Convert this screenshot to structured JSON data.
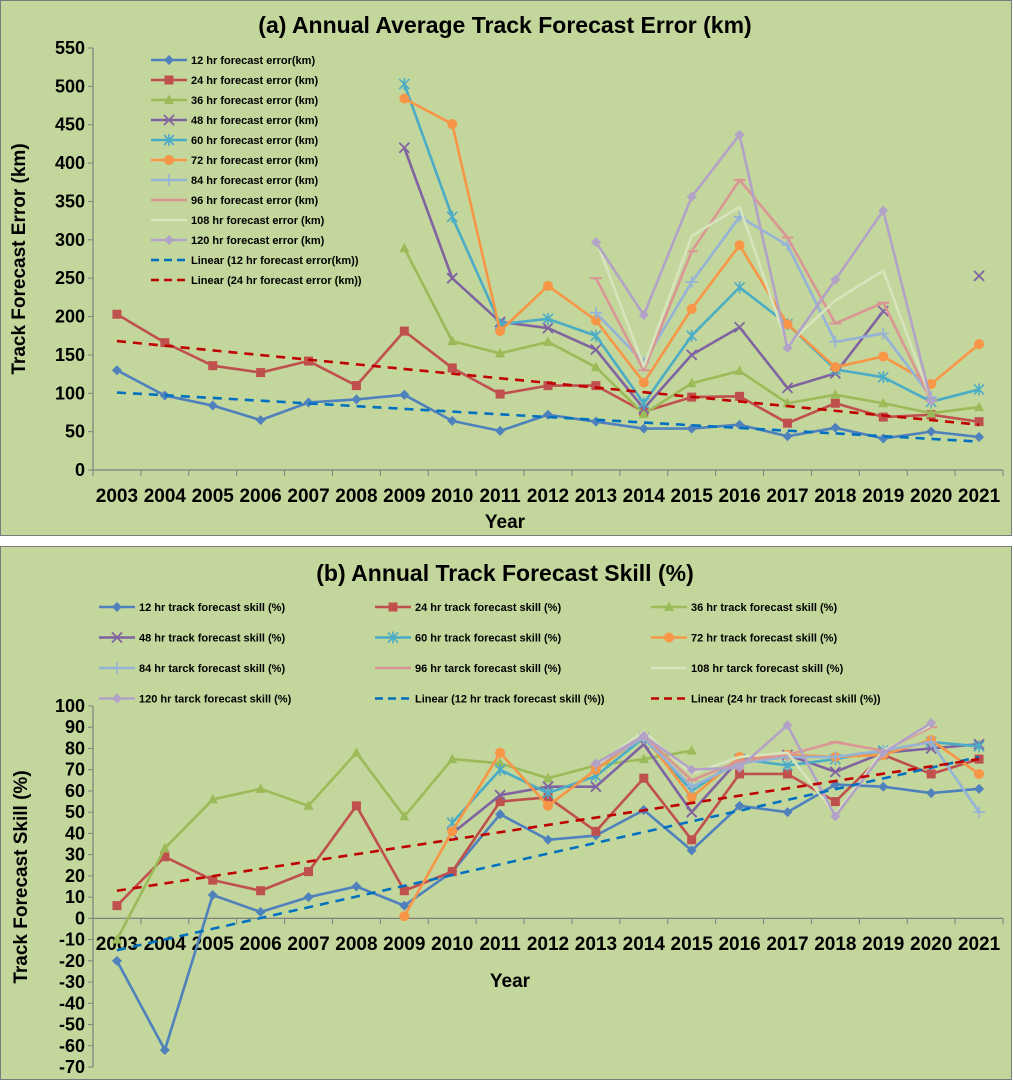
{
  "chart_data": [
    {
      "type": "line",
      "title": "(a) Annual Average  Track Forecast Error (km)",
      "xlabel": "Year",
      "ylabel": "Track Forecast Error (km)",
      "ylim": [
        0,
        550
      ],
      "yticks": [
        0,
        50,
        100,
        150,
        200,
        250,
        300,
        350,
        400,
        450,
        500,
        550
      ],
      "categories": [
        "2003",
        "2004",
        "2005",
        "2006",
        "2007",
        "2008",
        "2009",
        "2010",
        "2011",
        "2012",
        "2013",
        "2014",
        "2015",
        "2016",
        "2017",
        "2018",
        "2019",
        "2020",
        "2021"
      ],
      "legend_position": "top-left",
      "grid": false,
      "series": [
        {
          "name": "12 hr forecast error(km)",
          "color": "#4f81bd",
          "marker": "diamond",
          "values": [
            130,
            97,
            84,
            65,
            88,
            92,
            98,
            64,
            51,
            72,
            63,
            54,
            54,
            59,
            44,
            55,
            41,
            50,
            43
          ]
        },
        {
          "name": "24 hr forecast error (km)",
          "color": "#c0504d",
          "marker": "square",
          "values": [
            203,
            166,
            136,
            127,
            142,
            110,
            181,
            133,
            99,
            110,
            110,
            76,
            95,
            96,
            61,
            87,
            69,
            72,
            63
          ]
        },
        {
          "name": "36 hr forecast error (km)",
          "color": "#9bbb59",
          "marker": "triangle",
          "values": [
            null,
            null,
            null,
            null,
            null,
            null,
            289,
            168,
            152,
            167,
            134,
            73,
            113,
            129,
            87,
            98,
            87,
            74,
            82
          ]
        },
        {
          "name": "48 hr forecast error (km)",
          "color": "#8064a2",
          "marker": "x",
          "values": [
            null,
            null,
            null,
            null,
            null,
            null,
            420,
            250,
            193,
            185,
            157,
            80,
            150,
            186,
            107,
            126,
            207,
            null,
            253
          ]
        },
        {
          "name": "60 hr forecast error (km)",
          "color": "#4bacc6",
          "marker": "star",
          "values": [
            null,
            null,
            null,
            null,
            null,
            null,
            503,
            330,
            190,
            197,
            175,
            87,
            175,
            238,
            190,
            131,
            121,
            89,
            105
          ]
        },
        {
          "name": "72 hr forecast error (km)",
          "color": "#f79646",
          "marker": "circle",
          "values": [
            null,
            null,
            null,
            null,
            null,
            null,
            484,
            451,
            181,
            240,
            195,
            114,
            210,
            293,
            190,
            134,
            148,
            112,
            164
          ]
        },
        {
          "name": "84 hr forecast error (km)",
          "color": "#95b3d7",
          "marker": "plus",
          "values": [
            null,
            null,
            null,
            null,
            null,
            null,
            null,
            null,
            null,
            null,
            205,
            140,
            245,
            330,
            293,
            167,
            178,
            95,
            null
          ]
        },
        {
          "name": "96 hr forecast error (km)",
          "color": "#d99694",
          "marker": "dash",
          "values": [
            null,
            null,
            null,
            null,
            null,
            null,
            null,
            null,
            null,
            null,
            250,
            130,
            285,
            378,
            303,
            191,
            218,
            91,
            null
          ]
        },
        {
          "name": "108 hr forecast error (km)",
          "color": "#d7e4bd",
          "marker": "none",
          "values": [
            null,
            null,
            null,
            null,
            null,
            null,
            null,
            null,
            null,
            null,
            300,
            135,
            305,
            343,
            163,
            221,
            260,
            92,
            null
          ]
        },
        {
          "name": "120 hr forecast error (km)",
          "color": "#b3a2c7",
          "marker": "diamond",
          "values": [
            null,
            null,
            null,
            null,
            null,
            null,
            null,
            null,
            null,
            null,
            297,
            202,
            356,
            437,
            159,
            248,
            338,
            90,
            null
          ]
        }
      ],
      "trendlines": [
        {
          "name": "Linear (12 hr forecast error(km))",
          "color": "#0070c0",
          "from": [
            2003,
            101
          ],
          "to": [
            2021,
            37
          ]
        },
        {
          "name": "Linear (24 hr forecast error (km))",
          "color": "#c00000",
          "from": [
            2003,
            168
          ],
          "to": [
            2021,
            59
          ]
        }
      ]
    },
    {
      "type": "line",
      "title": "(b) Annual  Track Forecast Skill (%)",
      "xlabel": "Year",
      "ylabel": "Track Forecast Skill (%)",
      "ylim": [
        -70,
        100
      ],
      "yticks": [
        -70,
        -60,
        -50,
        -40,
        -30,
        -20,
        -10,
        0,
        10,
        20,
        30,
        40,
        50,
        60,
        70,
        80,
        90,
        100
      ],
      "categories": [
        "2003",
        "2004",
        "2005",
        "2006",
        "2007",
        "2008",
        "2009",
        "2010",
        "2011",
        "2012",
        "2013",
        "2014",
        "2015",
        "2016",
        "2017",
        "2018",
        "2019",
        "2020",
        "2021"
      ],
      "legend_position": "top",
      "grid": false,
      "series": [
        {
          "name": "12 hr track forecast skill (%)",
          "color": "#4f81bd",
          "marker": "diamond",
          "values": [
            -20,
            -62,
            11,
            3,
            10,
            15,
            6,
            22,
            49,
            37,
            39,
            51,
            32,
            53,
            50,
            63,
            62,
            59,
            61
          ]
        },
        {
          "name": "24 hr track forecast skill (%)",
          "color": "#c0504d",
          "marker": "square",
          "values": [
            6,
            29,
            18,
            13,
            22,
            53,
            13,
            22,
            55,
            57,
            41,
            66,
            37,
            68,
            68,
            55,
            77,
            68,
            75
          ]
        },
        {
          "name": "36 hr track forecast skill (%)",
          "color": "#9bbb59",
          "marker": "triangle",
          "values": [
            -10,
            33,
            56,
            61,
            53,
            78,
            48,
            75,
            73,
            66,
            72,
            75,
            79,
            null,
            null,
            null,
            null,
            null,
            null
          ]
        },
        {
          "name": "48 hr track forecast skill (%)",
          "color": "#8064a2",
          "marker": "x",
          "values": [
            null,
            null,
            null,
            null,
            null,
            null,
            null,
            40,
            58,
            62,
            62,
            82,
            50,
            75,
            77,
            69,
            78,
            80,
            82
          ]
        },
        {
          "name": "60 hr track forecast skill (%)",
          "color": "#4bacc6",
          "marker": "star",
          "values": [
            null,
            null,
            null,
            null,
            null,
            null,
            null,
            45,
            70,
            59,
            67,
            85,
            60,
            75,
            72,
            75,
            79,
            83,
            81
          ]
        },
        {
          "name": "72 hr track forecast skill (%)",
          "color": "#f79646",
          "marker": "circle",
          "values": [
            null,
            null,
            null,
            null,
            null,
            null,
            1,
            41,
            78,
            53,
            70,
            86,
            57,
            76,
            77,
            76,
            77,
            84,
            68
          ]
        },
        {
          "name": "84 hr tarck forecast skill (%)",
          "color": "#95b3d7",
          "marker": "plus",
          "values": [
            null,
            null,
            null,
            null,
            null,
            null,
            null,
            null,
            null,
            null,
            72,
            85,
            62,
            73,
            76,
            76,
            79,
            83,
            50
          ]
        },
        {
          "name": "96 hr tarck forecast skill (%)",
          "color": "#d99694",
          "marker": "dash",
          "values": [
            null,
            null,
            null,
            null,
            null,
            null,
            null,
            null,
            null,
            null,
            72,
            86,
            65,
            74,
            77,
            83,
            79,
            90,
            null
          ]
        },
        {
          "name": "108 hr tarck forecast skill (%)",
          "color": "#d7e4bd",
          "marker": "none",
          "values": [
            null,
            null,
            null,
            null,
            null,
            null,
            null,
            null,
            null,
            null,
            72,
            88,
            68,
            76,
            78,
            49,
            79,
            91,
            null
          ]
        },
        {
          "name": "120 hr tarck forecast skill (%)",
          "color": "#b3a2c7",
          "marker": "diamond",
          "values": [
            null,
            null,
            null,
            null,
            null,
            null,
            null,
            null,
            null,
            null,
            73,
            86,
            70,
            71,
            91,
            48,
            78,
            92,
            null
          ]
        }
      ],
      "trendlines": [
        {
          "name": "Linear (12 hr track forecast skill (%))",
          "color": "#0070c0",
          "from": [
            2003,
            -15
          ],
          "to": [
            2021,
            76
          ]
        },
        {
          "name": "Linear (24 hr track forecast skill (%))",
          "color": "#c00000",
          "from": [
            2003,
            13
          ],
          "to": [
            2021,
            75
          ]
        }
      ]
    }
  ]
}
